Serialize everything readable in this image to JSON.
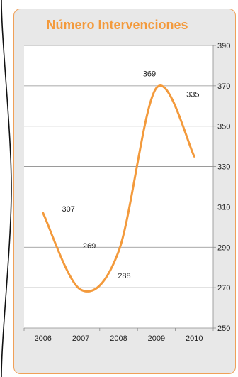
{
  "chart_data": {
    "type": "line",
    "title": "Número Intervenciones",
    "categories": [
      "2006",
      "2007",
      "2008",
      "2009",
      "2010"
    ],
    "series": [
      {
        "values": [
          307,
          269,
          288,
          369,
          335
        ]
      }
    ],
    "data_labels": [
      "307",
      "269",
      "288",
      "369",
      "335"
    ],
    "y_ticks": [
      "390",
      "370",
      "350",
      "330",
      "310",
      "290",
      "270",
      "250"
    ],
    "y_tick_values": [
      390,
      370,
      350,
      330,
      310,
      290,
      270,
      250
    ],
    "ylim": [
      250,
      390
    ],
    "grid": true,
    "smooth": true,
    "line_color": "#f39a3c",
    "title_color": "#f39a3c",
    "frame_color": "#f0a058"
  }
}
